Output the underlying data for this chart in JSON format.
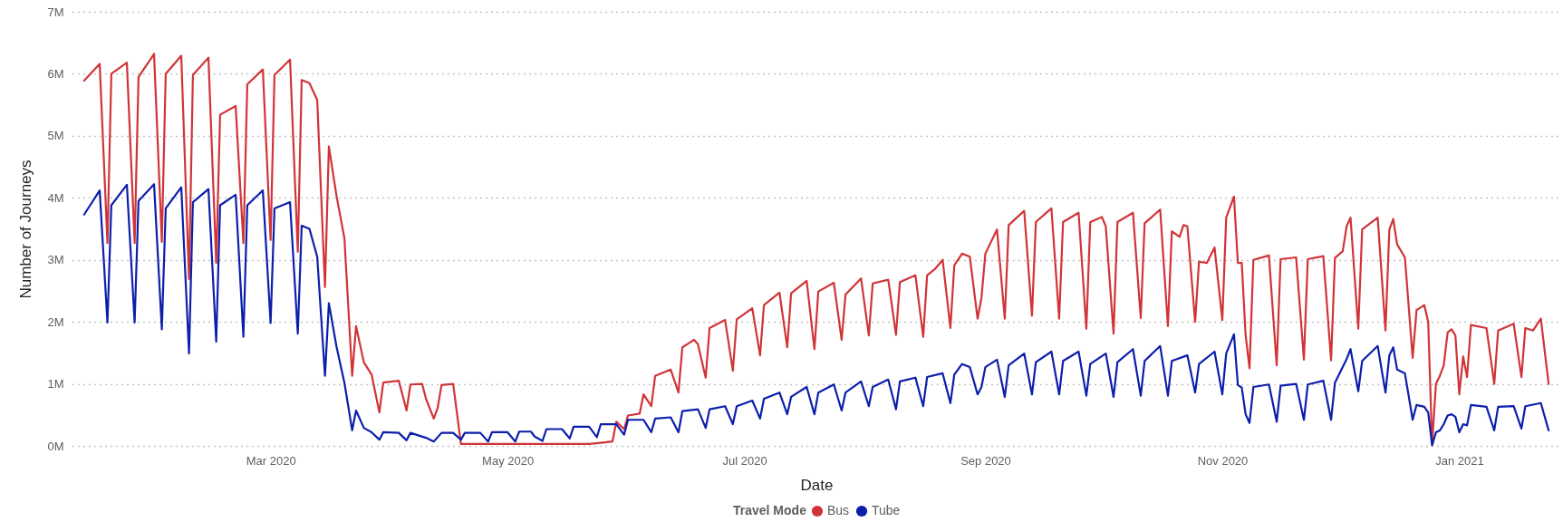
{
  "chart_data": {
    "type": "line",
    "xlabel": "Date",
    "ylabel": "Number of Journeys",
    "legend_title": "Travel Mode",
    "legend": "bottom",
    "grid": "y",
    "xlim": [
      "2020-01-10",
      "2021-01-27"
    ],
    "xticks": [
      {
        "value": "2020-03-01",
        "label": "Mar 2020"
      },
      {
        "value": "2020-05-01",
        "label": "May 2020"
      },
      {
        "value": "2020-07-01",
        "label": "Jul 2020"
      },
      {
        "value": "2020-09-01",
        "label": "Sep 2020"
      },
      {
        "value": "2020-11-01",
        "label": "Nov 2020"
      },
      {
        "value": "2021-01-01",
        "label": "Jan 2021"
      }
    ],
    "ylim": [
      0,
      7
    ],
    "yticks": [
      {
        "value": 0,
        "label": "0M"
      },
      {
        "value": 1,
        "label": "1M"
      },
      {
        "value": 2,
        "label": "2M"
      },
      {
        "value": 3,
        "label": "3M"
      },
      {
        "value": 4,
        "label": "4M"
      },
      {
        "value": 5,
        "label": "5M"
      },
      {
        "value": 6,
        "label": "6M"
      },
      {
        "value": 7,
        "label": "7M"
      }
    ],
    "series": [
      {
        "name": "Bus",
        "color": "#d13438",
        "x": [
          "2020-01-13",
          "2020-01-17",
          "2020-01-19",
          "2020-01-20",
          "2020-01-24",
          "2020-01-26",
          "2020-01-27",
          "2020-01-31",
          "2020-02-02",
          "2020-02-03",
          "2020-02-07",
          "2020-02-09",
          "2020-02-10",
          "2020-02-14",
          "2020-02-16",
          "2020-02-17",
          "2020-02-21",
          "2020-02-23",
          "2020-02-24",
          "2020-02-28",
          "2020-03-01",
          "2020-03-02",
          "2020-03-06",
          "2020-03-08",
          "2020-03-09",
          "2020-03-11",
          "2020-03-13",
          "2020-03-15",
          "2020-03-16",
          "2020-03-18",
          "2020-03-20",
          "2020-03-22",
          "2020-03-23",
          "2020-03-25",
          "2020-03-27",
          "2020-03-29",
          "2020-03-30",
          "2020-04-03",
          "2020-04-05",
          "2020-04-06",
          "2020-04-09",
          "2020-04-10",
          "2020-04-12",
          "2020-04-13",
          "2020-04-14",
          "2020-04-17",
          "2020-04-19",
          "2020-05-22",
          "2020-05-25",
          "2020-05-28",
          "2020-05-29",
          "2020-05-31",
          "2020-06-01",
          "2020-06-04",
          "2020-06-05",
          "2020-06-07",
          "2020-06-08",
          "2020-06-12",
          "2020-06-14",
          "2020-06-15",
          "2020-06-18",
          "2020-06-19",
          "2020-06-21",
          "2020-06-22",
          "2020-06-26",
          "2020-06-28",
          "2020-06-29",
          "2020-07-03",
          "2020-07-05",
          "2020-07-06",
          "2020-07-10",
          "2020-07-12",
          "2020-07-13",
          "2020-07-17",
          "2020-07-19",
          "2020-07-20",
          "2020-07-24",
          "2020-07-26",
          "2020-07-27",
          "2020-07-31",
          "2020-08-02",
          "2020-08-03",
          "2020-08-07",
          "2020-08-09",
          "2020-08-10",
          "2020-08-14",
          "2020-08-16",
          "2020-08-17",
          "2020-08-19",
          "2020-08-21",
          "2020-08-23",
          "2020-08-24",
          "2020-08-26",
          "2020-08-28",
          "2020-08-30",
          "2020-08-31",
          "2020-09-01",
          "2020-09-04",
          "2020-09-06",
          "2020-09-07",
          "2020-09-11",
          "2020-09-13",
          "2020-09-14",
          "2020-09-18",
          "2020-09-20",
          "2020-09-21",
          "2020-09-25",
          "2020-09-27",
          "2020-09-28",
          "2020-10-01",
          "2020-10-02",
          "2020-10-04",
          "2020-10-05",
          "2020-10-09",
          "2020-10-11",
          "2020-10-12",
          "2020-10-16",
          "2020-10-18",
          "2020-10-19",
          "2020-10-21",
          "2020-10-22",
          "2020-10-23",
          "2020-10-25",
          "2020-10-26",
          "2020-10-28",
          "2020-10-30",
          "2020-11-01",
          "2020-11-02",
          "2020-11-04",
          "2020-11-05",
          "2020-11-06",
          "2020-11-07",
          "2020-11-08",
          "2020-11-09",
          "2020-11-13",
          "2020-11-15",
          "2020-11-16",
          "2020-11-20",
          "2020-11-22",
          "2020-11-23",
          "2020-11-27",
          "2020-11-29",
          "2020-11-30",
          "2020-12-02",
          "2020-12-03",
          "2020-12-04",
          "2020-12-06",
          "2020-12-07",
          "2020-12-11",
          "2020-12-13",
          "2020-12-14",
          "2020-12-15",
          "2020-12-16",
          "2020-12-18",
          "2020-12-20",
          "2020-12-21",
          "2020-12-23",
          "2020-12-24",
          "2020-12-25",
          "2020-12-26",
          "2020-12-27",
          "2020-12-28",
          "2020-12-29",
          "2020-12-30",
          "2020-12-31",
          "2021-01-01",
          "2021-01-02",
          "2021-01-03",
          "2021-01-04",
          "2021-01-08",
          "2021-01-10",
          "2021-01-11",
          "2021-01-15",
          "2021-01-17",
          "2021-01-18",
          "2021-01-20",
          "2021-01-22",
          "2021-01-24"
        ],
        "values": [
          5.89,
          6.16,
          3.27,
          6.0,
          6.18,
          3.27,
          5.95,
          6.32,
          3.29,
          6.0,
          6.29,
          2.69,
          5.98,
          6.26,
          2.95,
          5.34,
          5.48,
          3.27,
          5.83,
          6.07,
          3.32,
          5.98,
          6.23,
          3.13,
          5.9,
          5.85,
          5.58,
          2.56,
          4.83,
          4.02,
          3.35,
          1.13,
          1.93,
          1.35,
          1.15,
          0.54,
          1.02,
          1.05,
          0.57,
          0.99,
          1.0,
          0.76,
          0.44,
          0.61,
          0.98,
          1.0,
          0.03,
          0.03,
          0.05,
          0.07,
          0.39,
          0.27,
          0.49,
          0.52,
          0.83,
          0.64,
          1.13,
          1.23,
          0.86,
          1.59,
          1.71,
          1.64,
          1.1,
          1.9,
          2.03,
          1.21,
          2.04,
          2.22,
          1.46,
          2.27,
          2.47,
          1.59,
          2.46,
          2.66,
          1.56,
          2.49,
          2.63,
          1.71,
          2.44,
          2.7,
          1.78,
          2.62,
          2.68,
          1.79,
          2.64,
          2.75,
          1.76,
          2.75,
          2.85,
          3.0,
          1.9,
          2.91,
          3.1,
          3.05,
          2.05,
          2.39,
          3.1,
          3.49,
          2.05,
          3.56,
          3.79,
          2.1,
          3.61,
          3.83,
          2.05,
          3.61,
          3.76,
          1.89,
          3.61,
          3.69,
          3.54,
          1.81,
          3.61,
          3.76,
          2.06,
          3.59,
          3.81,
          1.93,
          3.46,
          3.37,
          3.56,
          3.54,
          2.0,
          2.97,
          2.95,
          3.2,
          2.03,
          3.68,
          4.02,
          2.95,
          2.95,
          1.78,
          1.25,
          3.0,
          3.07,
          1.3,
          3.01,
          3.04,
          1.39,
          3.01,
          3.06,
          1.38,
          3.03,
          3.14,
          3.54,
          3.68,
          1.89,
          3.49,
          3.68,
          1.86,
          3.49,
          3.66,
          3.25,
          3.04,
          1.42,
          2.19,
          2.27,
          2.0,
          0.03,
          1.0,
          1.13,
          1.3,
          1.83,
          1.88,
          1.78,
          0.83,
          1.44,
          1.11,
          1.95,
          1.9,
          1.0,
          1.86,
          1.97,
          1.11,
          1.9,
          1.86,
          2.05,
          1.0
        ]
      },
      {
        "name": "Tube",
        "color": "#0c1fab",
        "x": [
          "2020-01-13",
          "2020-01-17",
          "2020-01-19",
          "2020-01-20",
          "2020-01-24",
          "2020-01-26",
          "2020-01-27",
          "2020-01-31",
          "2020-02-02",
          "2020-02-03",
          "2020-02-07",
          "2020-02-09",
          "2020-02-10",
          "2020-02-14",
          "2020-02-16",
          "2020-02-17",
          "2020-02-21",
          "2020-02-23",
          "2020-02-24",
          "2020-02-28",
          "2020-03-01",
          "2020-03-02",
          "2020-03-06",
          "2020-03-08",
          "2020-03-09",
          "2020-03-11",
          "2020-03-13",
          "2020-03-15",
          "2020-03-16",
          "2020-03-18",
          "2020-03-20",
          "2020-03-22",
          "2020-03-23",
          "2020-03-25",
          "2020-03-27",
          "2020-03-29",
          "2020-03-30",
          "2020-04-03",
          "2020-04-05",
          "2020-04-06",
          "2020-04-10",
          "2020-04-12",
          "2020-04-14",
          "2020-04-17",
          "2020-04-19",
          "2020-04-20",
          "2020-04-24",
          "2020-04-26",
          "2020-04-27",
          "2020-05-01",
          "2020-05-03",
          "2020-05-04",
          "2020-05-07",
          "2020-05-08",
          "2020-05-10",
          "2020-05-11",
          "2020-05-15",
          "2020-05-17",
          "2020-05-18",
          "2020-05-22",
          "2020-05-24",
          "2020-05-25",
          "2020-05-29",
          "2020-05-31",
          "2020-06-01",
          "2020-06-05",
          "2020-06-07",
          "2020-06-08",
          "2020-06-12",
          "2020-06-14",
          "2020-06-15",
          "2020-06-19",
          "2020-06-21",
          "2020-06-22",
          "2020-06-26",
          "2020-06-28",
          "2020-06-29",
          "2020-07-03",
          "2020-07-05",
          "2020-07-06",
          "2020-07-10",
          "2020-07-12",
          "2020-07-13",
          "2020-07-17",
          "2020-07-19",
          "2020-07-20",
          "2020-07-24",
          "2020-07-26",
          "2020-07-27",
          "2020-07-31",
          "2020-08-02",
          "2020-08-03",
          "2020-08-07",
          "2020-08-09",
          "2020-08-10",
          "2020-08-14",
          "2020-08-16",
          "2020-08-17",
          "2020-08-21",
          "2020-08-23",
          "2020-08-24",
          "2020-08-26",
          "2020-08-28",
          "2020-08-30",
          "2020-08-31",
          "2020-09-01",
          "2020-09-04",
          "2020-09-06",
          "2020-09-07",
          "2020-09-11",
          "2020-09-13",
          "2020-09-14",
          "2020-09-18",
          "2020-09-20",
          "2020-09-21",
          "2020-09-25",
          "2020-09-27",
          "2020-09-28",
          "2020-10-02",
          "2020-10-04",
          "2020-10-05",
          "2020-10-09",
          "2020-10-11",
          "2020-10-12",
          "2020-10-16",
          "2020-10-18",
          "2020-10-19",
          "2020-10-23",
          "2020-10-25",
          "2020-10-26",
          "2020-10-30",
          "2020-11-01",
          "2020-11-02",
          "2020-11-04",
          "2020-11-05",
          "2020-11-06",
          "2020-11-07",
          "2020-11-08",
          "2020-11-09",
          "2020-11-13",
          "2020-11-15",
          "2020-11-16",
          "2020-11-20",
          "2020-11-22",
          "2020-11-23",
          "2020-11-27",
          "2020-11-29",
          "2020-11-30",
          "2020-12-03",
          "2020-12-04",
          "2020-12-06",
          "2020-12-07",
          "2020-12-11",
          "2020-12-13",
          "2020-12-14",
          "2020-12-15",
          "2020-12-16",
          "2020-12-18",
          "2020-12-20",
          "2020-12-21",
          "2020-12-23",
          "2020-12-24",
          "2020-12-25",
          "2020-12-26",
          "2020-12-27",
          "2020-12-28",
          "2020-12-29",
          "2020-12-30",
          "2020-12-31",
          "2021-01-01",
          "2021-01-02",
          "2021-01-03",
          "2021-01-04",
          "2021-01-08",
          "2021-01-10",
          "2021-01-11",
          "2021-01-15",
          "2021-01-17",
          "2021-01-18",
          "2021-01-22",
          "2021-01-24"
        ],
        "values": [
          3.73,
          4.12,
          1.99,
          3.88,
          4.21,
          1.99,
          3.95,
          4.22,
          1.88,
          3.83,
          4.17,
          1.49,
          3.93,
          4.14,
          1.68,
          3.88,
          4.05,
          1.76,
          3.88,
          4.12,
          1.98,
          3.83,
          3.93,
          1.81,
          3.55,
          3.5,
          3.05,
          1.13,
          2.3,
          1.59,
          1.02,
          0.25,
          0.57,
          0.29,
          0.22,
          0.1,
          0.22,
          0.21,
          0.09,
          0.21,
          0.13,
          0.07,
          0.21,
          0.21,
          0.1,
          0.21,
          0.21,
          0.07,
          0.22,
          0.22,
          0.07,
          0.23,
          0.23,
          0.15,
          0.08,
          0.27,
          0.27,
          0.12,
          0.31,
          0.31,
          0.14,
          0.35,
          0.35,
          0.18,
          0.42,
          0.42,
          0.22,
          0.44,
          0.46,
          0.22,
          0.56,
          0.59,
          0.29,
          0.59,
          0.64,
          0.35,
          0.64,
          0.73,
          0.44,
          0.76,
          0.86,
          0.51,
          0.79,
          0.95,
          0.51,
          0.86,
          0.99,
          0.57,
          0.86,
          1.04,
          0.64,
          0.95,
          1.07,
          0.59,
          1.04,
          1.1,
          0.64,
          1.11,
          1.17,
          0.69,
          1.15,
          1.32,
          1.27,
          0.83,
          0.95,
          1.27,
          1.39,
          0.79,
          1.3,
          1.49,
          0.83,
          1.35,
          1.52,
          0.83,
          1.37,
          1.52,
          0.81,
          1.32,
          1.49,
          0.79,
          1.35,
          1.56,
          0.81,
          1.37,
          1.61,
          0.81,
          1.37,
          1.46,
          0.86,
          1.32,
          1.52,
          0.83,
          1.49,
          1.8,
          0.98,
          0.94,
          0.51,
          0.37,
          0.95,
          0.99,
          0.39,
          0.97,
          1.0,
          0.42,
          0.99,
          1.05,
          0.42,
          1.02,
          1.4,
          1.56,
          0.88,
          1.37,
          1.61,
          0.86,
          1.46,
          1.59,
          1.23,
          1.17,
          0.42,
          0.66,
          0.63,
          0.54,
          0.01,
          0.22,
          0.25,
          0.35,
          0.49,
          0.51,
          0.47,
          0.22,
          0.35,
          0.33,
          0.66,
          0.63,
          0.25,
          0.63,
          0.64,
          0.28,
          0.64,
          0.69,
          0.25
        ]
      }
    ]
  }
}
